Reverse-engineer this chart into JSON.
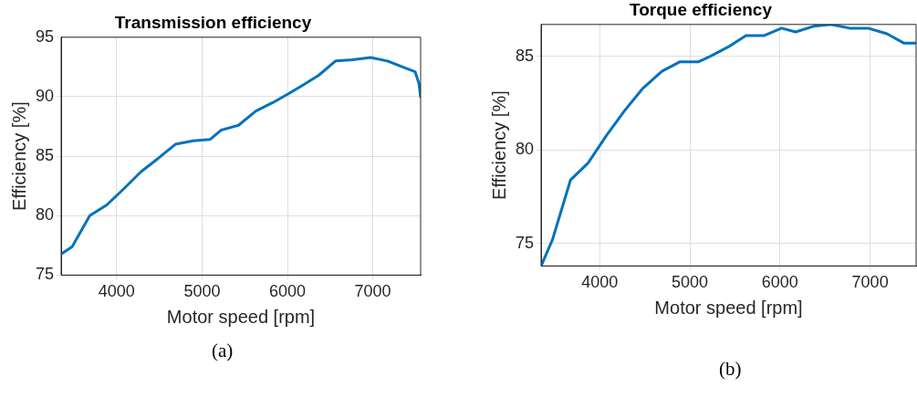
{
  "chart_data": [
    {
      "type": "line",
      "title": "Transmission efficiency",
      "xlabel": "Motor speed [rpm]",
      "ylabel": "Efficiency [%]",
      "annotations": [
        "(a)"
      ],
      "x": [
        3355,
        3480,
        3685,
        3885,
        4090,
        4287,
        4484,
        4688,
        4896,
        5093,
        5226,
        5427,
        5631,
        5828,
        6025,
        6186,
        6366,
        6563,
        6760,
        6975,
        7172,
        7495,
        7541,
        7559
      ],
      "series": [
        {
          "color": "#0072bd",
          "values": [
            76.8,
            77.4,
            80.0,
            80.9,
            82.3,
            83.7,
            84.8,
            86.0,
            86.3,
            86.4,
            87.2,
            87.6,
            88.8,
            89.5,
            90.3,
            91.0,
            91.8,
            93.0,
            93.1,
            93.3,
            93.0,
            92.1,
            91.1,
            90.0
          ]
        }
      ],
      "xlim": [
        3350,
        7560
      ],
      "ylim": [
        75,
        95
      ],
      "xticks": [
        4000,
        5000,
        6000,
        7000
      ],
      "yticks": [
        75,
        80,
        85,
        90,
        95
      ],
      "grid": true
    },
    {
      "type": "line",
      "title": "Torque efficiency",
      "xlabel": "Motor speed [rpm]",
      "ylabel": "Efficiency [%]",
      "annotations": [
        "(b)"
      ],
      "x": [
        3350,
        3476,
        3677,
        3871,
        4079,
        4277,
        4481,
        4690,
        4887,
        5092,
        5228,
        5426,
        5623,
        5821,
        6018,
        6173,
        6371,
        6565,
        6773,
        6978,
        7187,
        7377,
        7510
      ],
      "series": [
        {
          "color": "#0072bd",
          "values": [
            73.8,
            75.2,
            78.4,
            79.3,
            80.8,
            82.1,
            83.3,
            84.2,
            84.7,
            84.7,
            85.0,
            85.5,
            86.1,
            86.1,
            86.5,
            86.3,
            86.6,
            86.7,
            86.5,
            86.5,
            86.2,
            85.7,
            85.7
          ]
        }
      ],
      "xlim": [
        3350,
        7510
      ],
      "ylim": [
        73.8,
        86.7
      ],
      "xticks": [
        4000,
        5000,
        6000,
        7000
      ],
      "yticks": [
        75,
        80,
        85
      ],
      "grid": true
    }
  ]
}
